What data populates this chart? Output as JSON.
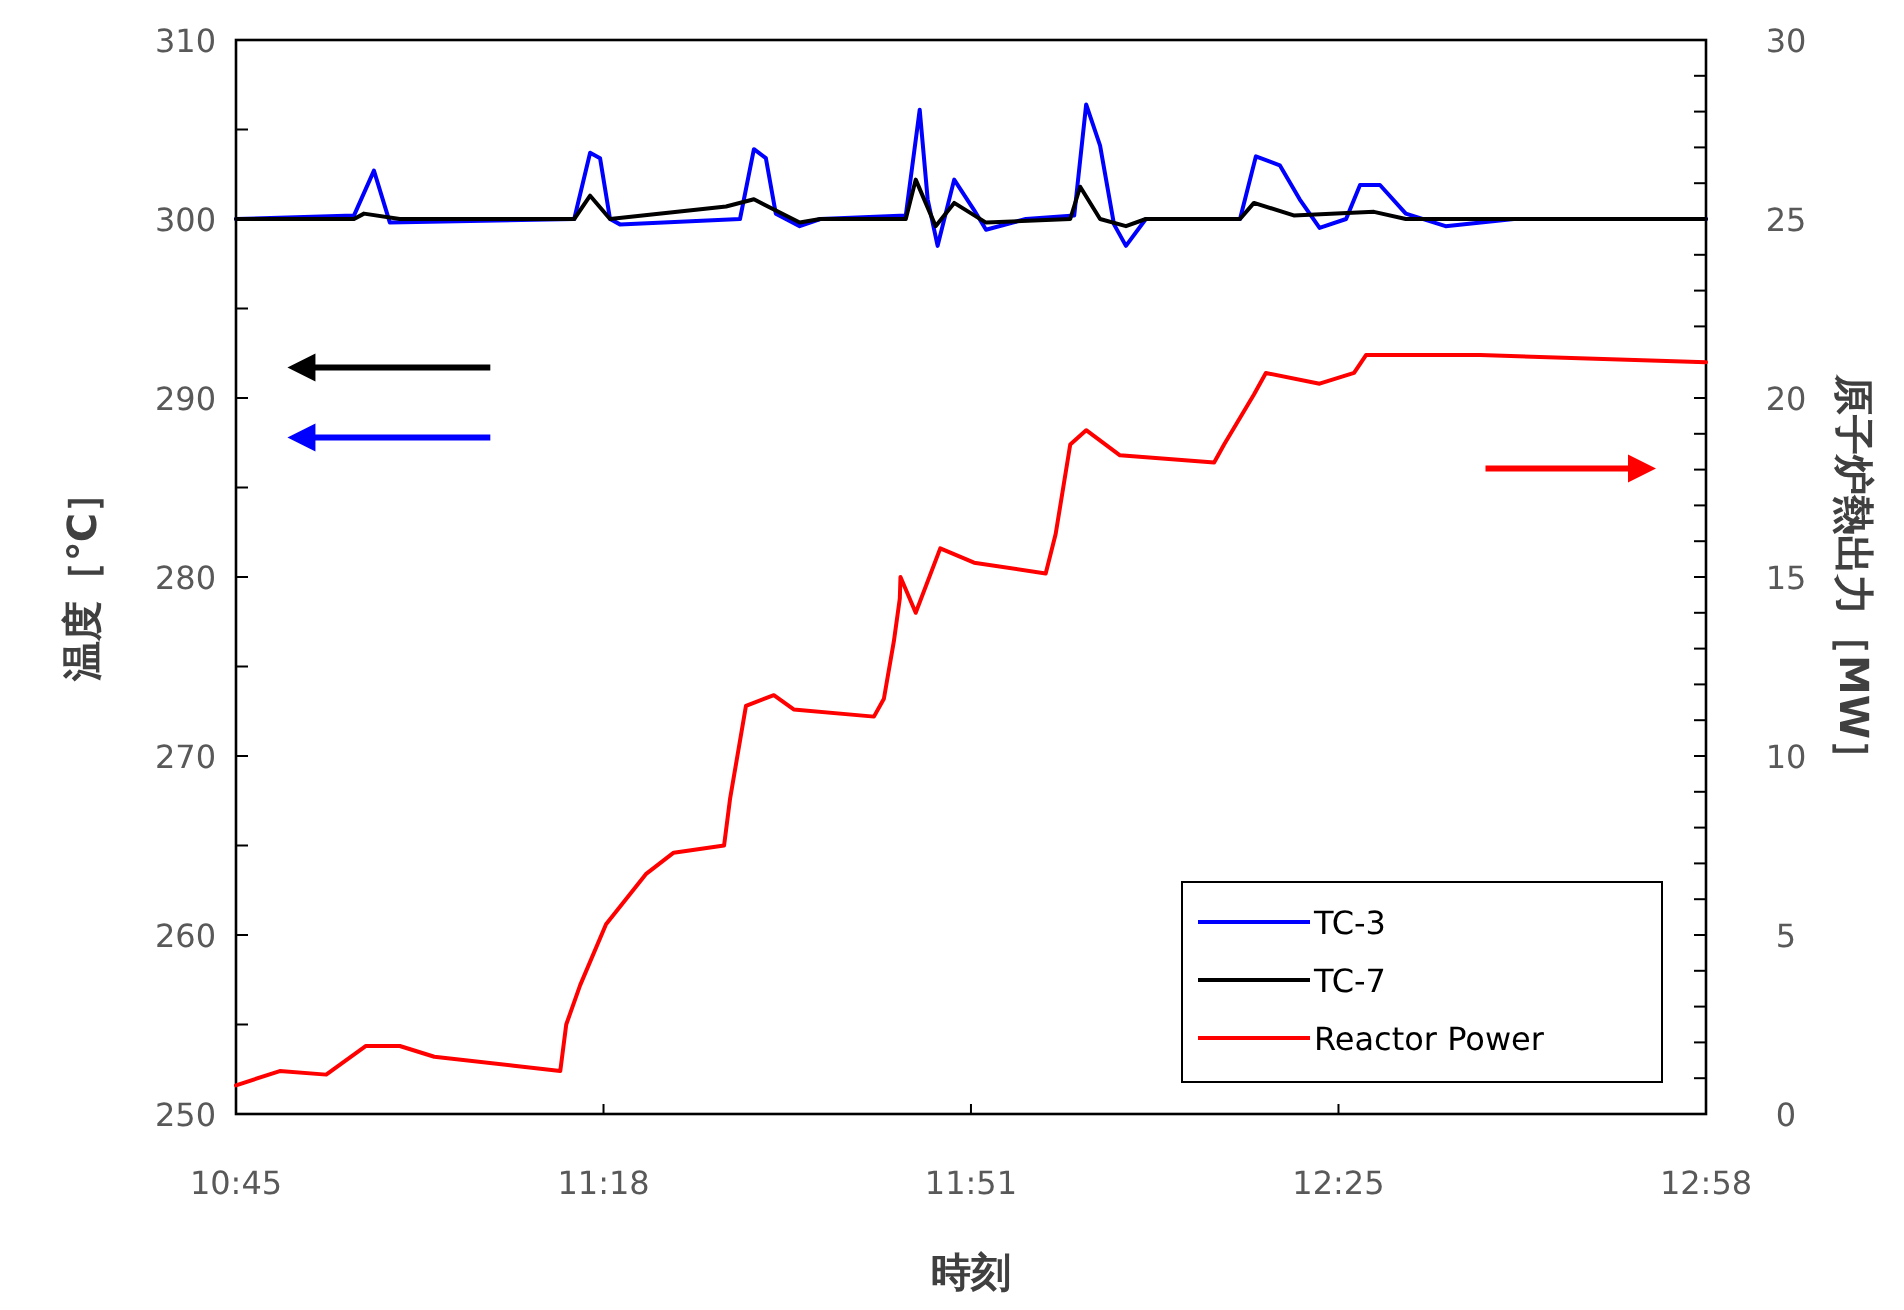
{
  "chart_data": {
    "type": "line",
    "xlabel": "時刻",
    "ylabel": "温度［℃］",
    "y2label": "原子炉熱出力［MW］",
    "xlim": [
      10.75,
      12.9667
    ],
    "xticks": [
      {
        "value": 10.75,
        "label": "10:45"
      },
      {
        "value": 11.3042,
        "label": "11:18"
      },
      {
        "value": 11.8583,
        "label": "11:51"
      },
      {
        "value": 12.4125,
        "label": "12:25"
      },
      {
        "value": 12.9667,
        "label": "12:58"
      }
    ],
    "ylim": [
      250,
      310
    ],
    "yticks": [
      250,
      {
        "value": 255,
        "label": null
      },
      260,
      {
        "value": 265,
        "label": null
      },
      270,
      {
        "value": 275,
        "label": null
      },
      280,
      {
        "value": 285,
        "label": null
      },
      290,
      {
        "value": 295,
        "label": null
      },
      300,
      {
        "value": 305,
        "label": null
      },
      310
    ],
    "y2lim": [
      0,
      30
    ],
    "y2ticks": [
      0,
      {
        "value": 1,
        "label": null
      },
      {
        "value": 2,
        "label": null
      },
      {
        "value": 3,
        "label": null
      },
      {
        "value": 4,
        "label": null
      },
      5,
      {
        "value": 6,
        "label": null
      },
      {
        "value": 7,
        "label": null
      },
      {
        "value": 8,
        "label": null
      },
      {
        "value": 9,
        "label": null
      },
      10,
      {
        "value": 11,
        "label": null
      },
      {
        "value": 12,
        "label": null
      },
      {
        "value": 13,
        "label": null
      },
      {
        "value": 14,
        "label": null
      },
      15,
      {
        "value": 16,
        "label": null
      },
      {
        "value": 17,
        "label": null
      },
      {
        "value": 18,
        "label": null
      },
      {
        "value": 19,
        "label": null
      },
      20,
      {
        "value": 21,
        "label": null
      },
      {
        "value": 22,
        "label": null
      },
      {
        "value": 23,
        "label": null
      },
      {
        "value": 24,
        "label": null
      },
      25,
      {
        "value": 26,
        "label": null
      },
      {
        "value": 27,
        "label": null
      },
      {
        "value": 28,
        "label": null
      },
      {
        "value": 29,
        "label": null
      },
      30
    ],
    "grid": false,
    "legend": "bottom right",
    "marker": "none",
    "line_style": "solid",
    "series": [
      {
        "name": "TC-3",
        "color": "#0000ff",
        "x": [
          10.75,
          10.928,
          10.958,
          10.982,
          11.26,
          11.284,
          11.299,
          11.314,
          11.329,
          11.51,
          11.531,
          11.549,
          11.564,
          11.6,
          11.631,
          11.76,
          11.781,
          11.793,
          11.808,
          11.833,
          11.863,
          11.881,
          11.941,
          12.014,
          12.032,
          12.053,
          12.074,
          12.092,
          12.122,
          12.264,
          12.288,
          12.324,
          12.354,
          12.384,
          12.424,
          12.445,
          12.475,
          12.514,
          12.574,
          12.677,
          12.9667
        ],
        "values": [
          300,
          300.2,
          302.7,
          299.8,
          300,
          303.7,
          303.4,
          300,
          299.7,
          300,
          303.9,
          303.4,
          300.3,
          299.6,
          300,
          300.2,
          306.1,
          301.1,
          298.5,
          302.2,
          300.5,
          299.4,
          300,
          300.2,
          306.4,
          304.1,
          299.7,
          298.5,
          300,
          300,
          303.5,
          303,
          301.1,
          299.5,
          300,
          301.9,
          301.9,
          300.3,
          299.6,
          300,
          300
        ]
      },
      {
        "name": "TC-7",
        "color": "#000000",
        "x": [
          10.75,
          10.928,
          10.943,
          10.997,
          11.26,
          11.284,
          11.314,
          11.489,
          11.531,
          11.6,
          11.631,
          11.76,
          11.775,
          11.805,
          11.833,
          11.881,
          12.008,
          12.023,
          12.053,
          12.092,
          12.122,
          12.264,
          12.285,
          12.345,
          12.466,
          12.514,
          12.9667
        ],
        "values": [
          300,
          300,
          300.3,
          300,
          300,
          301.3,
          300,
          300.7,
          301.1,
          299.8,
          300,
          300,
          302.2,
          299.6,
          300.9,
          299.8,
          300,
          301.8,
          300,
          299.6,
          300,
          300,
          300.9,
          300.2,
          300.4,
          300,
          300
        ]
      },
      {
        "name": "Reactor Power",
        "color": "#ff0000",
        "axis": "y2",
        "x": [
          10.75,
          10.816,
          10.886,
          10.946,
          10.997,
          11.049,
          11.169,
          11.239,
          11.248,
          11.269,
          11.308,
          11.368,
          11.41,
          11.486,
          11.495,
          11.519,
          11.561,
          11.591,
          11.712,
          11.727,
          11.742,
          11.751,
          11.752,
          11.775,
          11.812,
          11.863,
          11.971,
          11.986,
          12.008,
          12.032,
          12.083,
          12.225,
          12.24,
          12.285,
          12.303,
          12.384,
          12.436,
          12.454,
          12.626,
          12.9667
        ],
        "values": [
          0.8,
          1.2,
          1.1,
          1.9,
          1.9,
          1.6,
          1.35,
          1.2,
          2.5,
          3.6,
          5.3,
          6.7,
          7.3,
          7.5,
          8.8,
          11.4,
          11.7,
          11.3,
          11.1,
          11.6,
          13.2,
          14.4,
          15,
          14,
          15.8,
          15.4,
          15.1,
          16.2,
          18.7,
          19.1,
          18.4,
          18.2,
          18.7,
          20.1,
          20.7,
          20.4,
          20.7,
          21.2,
          21.2,
          21
        ]
      }
    ]
  }
}
